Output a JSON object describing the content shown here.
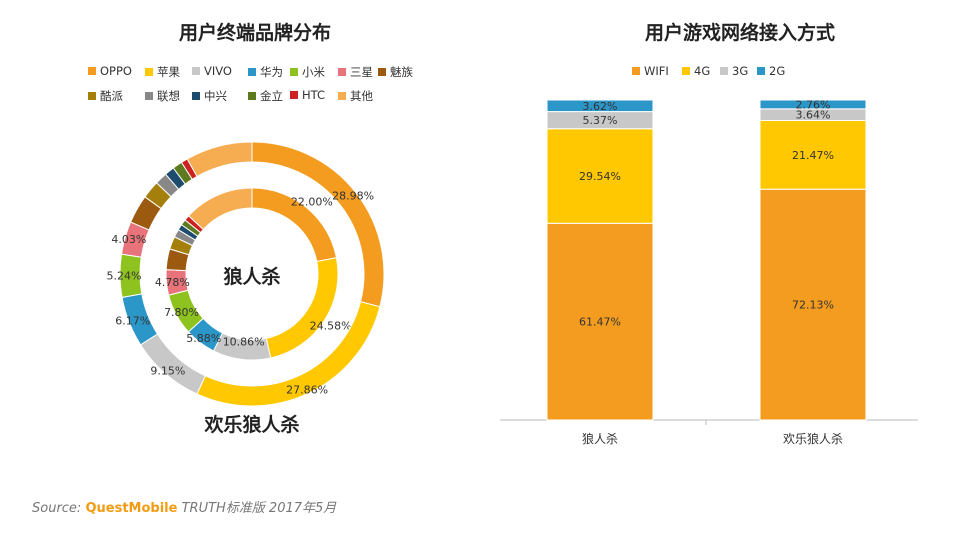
{
  "left": {
    "title": "用户终端品牌分布",
    "center_label": "狼人杀",
    "outer_label": "欢乐狼人杀"
  },
  "right": {
    "title": "用户游戏网络接入方式"
  },
  "source": {
    "prefix": "Source:",
    "brand": "QuestMobile",
    "rest": "TRUTH标准版 2017年5月"
  },
  "chart_data": [
    {
      "type": "pie",
      "variant": "double-ring",
      "legend": [
        "OPPO",
        "苹果",
        "VIVO",
        "华为",
        "小米",
        "三星",
        "魅族",
        "酷派",
        "联想",
        "中兴",
        "金立",
        "HTC",
        "其他"
      ],
      "colors": [
        "#f39c1f",
        "#ffc800",
        "#c8c8c8",
        "#2b96c8",
        "#8ec31f",
        "#e9737a",
        "#9c5a10",
        "#a47f0c",
        "#888888",
        "#1e4c6f",
        "#5e7a1e",
        "#cc2222",
        "#f6ad52"
      ],
      "series": [
        {
          "name": "狼人杀",
          "ring": "inner",
          "values": [
            22.0,
            24.58,
            10.86,
            5.88,
            7.8,
            4.78,
            3.9,
            2.4,
            1.5,
            1.1,
            1.1,
            1.0,
            13.21
          ],
          "labels": [
            "22.00%",
            "24.58%",
            "10.86%",
            "5.88%",
            "7.80%",
            "4.78%",
            "",
            "",
            "",
            "",
            "",
            "",
            ""
          ]
        },
        {
          "name": "欢乐狼人杀",
          "ring": "outer",
          "values": [
            28.98,
            27.86,
            9.15,
            6.17,
            5.24,
            4.03,
            3.5,
            2.2,
            1.5,
            1.2,
            1.2,
            0.8,
            8.16
          ],
          "labels": [
            "28.98%",
            "27.86%",
            "9.15%",
            "6.17%",
            "5.24%",
            "4.03%",
            "",
            "",
            "",
            "",
            "",
            "",
            ""
          ]
        }
      ]
    },
    {
      "type": "bar",
      "stacked": true,
      "categories": [
        "狼人杀",
        "欢乐狼人杀"
      ],
      "series": [
        {
          "name": "WIFI",
          "color": "#f39c1f",
          "values": [
            61.47,
            72.13
          ]
        },
        {
          "name": "4G",
          "color": "#ffc800",
          "values": [
            29.54,
            21.47
          ]
        },
        {
          "name": "3G",
          "color": "#c8c8c8",
          "values": [
            5.37,
            3.64
          ]
        },
        {
          "name": "2G",
          "color": "#2b96c8",
          "values": [
            3.62,
            2.76
          ]
        }
      ],
      "ylim": [
        0,
        100
      ],
      "grid": false,
      "legend_position": "top"
    }
  ]
}
